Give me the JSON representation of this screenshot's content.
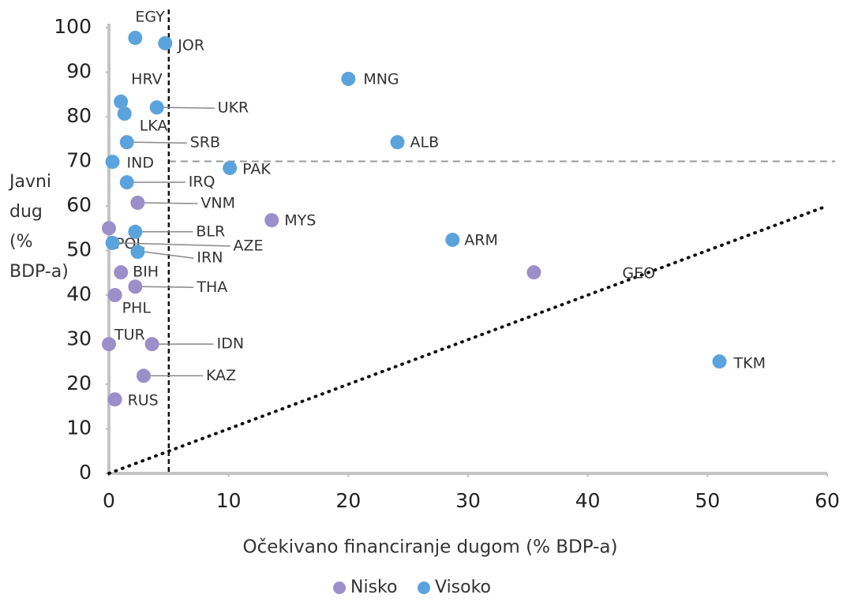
{
  "chart_data": {
    "type": "scatter",
    "xlabel": "Očekivano financiranje dugom (% BDP-a)",
    "ylabel": [
      "Javni",
      "dug",
      "(%",
      "BDP-a)"
    ],
    "xlim": [
      0,
      60
    ],
    "xticks": [
      0,
      10,
      20,
      30,
      40,
      50,
      60
    ],
    "ylim": [
      0,
      100
    ],
    "yticks": [
      0,
      10,
      20,
      30,
      40,
      50,
      60,
      70,
      80,
      90,
      100
    ],
    "vline": 5,
    "hline": 70,
    "identity_line": true,
    "series": [
      {
        "name": "Nisko",
        "color": "#9b8fca",
        "labels": [
          "VNM",
          "MYS",
          "POL",
          "GEO",
          "BIH",
          "THA",
          "PHL",
          "TUR",
          "IDN",
          "KAZ",
          "RUS"
        ],
        "x": [
          2.4,
          13.6,
          0,
          35.5,
          1.0,
          2.2,
          0.5,
          0,
          3.6,
          2.9,
          0.5
        ],
        "values": [
          60.7,
          56.8,
          55.0,
          45.1,
          45.1,
          41.9,
          40.0,
          29.0,
          29.0,
          21.9,
          16.6
        ]
      },
      {
        "name": "Visoko",
        "color": "#5ba3dc",
        "labels": [
          "EGY",
          "JOR",
          "MNG",
          "HRV",
          "UKR",
          "LKA",
          "SRB",
          "ALB",
          "IND",
          "PAK",
          "IRQ",
          "BLR",
          "AZE",
          "IRN",
          "ARM",
          "TKM"
        ],
        "x": [
          2.2,
          4.7,
          20,
          1.0,
          4.0,
          1.3,
          1.5,
          24.1,
          0.3,
          10.1,
          1.5,
          2.2,
          0.3,
          2.4,
          28.7,
          51.0
        ],
        "values": [
          97.7,
          96.5,
          88.5,
          83.4,
          82.1,
          80.7,
          74.3,
          74.3,
          69.9,
          68.5,
          65.3,
          54.2,
          51.7,
          49.7,
          52.4,
          25.1
        ]
      }
    ]
  }
}
